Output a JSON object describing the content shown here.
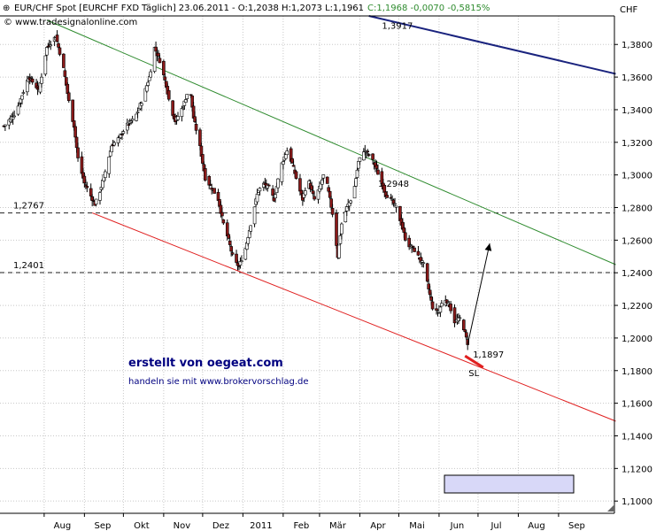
{
  "header": {
    "instrument": "EUR/CHF Spot [EURCHF FXD",
    "interval": "Täglich]",
    "date": "23.06.2011",
    "ohlc": "- O:1,2038 H:1,2073 L:1,1961",
    "change": "C:1,1968 -0,0070 -0,5815%",
    "copyright": "© www.tradesignalonline.com",
    "currency": "CHF"
  },
  "branding": {
    "title": "erstellt von oegeat.com",
    "subtitle": "handeln sie mit www.brokervorschlag.de"
  },
  "colors": {
    "candle_up": "#ffffff",
    "candle_down": "#8b1a1a",
    "upper_channel": "#2e8b2e",
    "lower_channel": "#e02020",
    "long_trend": "#1a237e",
    "grid": "#c8c8c8",
    "hline": "#222222",
    "legend_box": "#d8d8f8"
  },
  "chart_data": {
    "type": "candlestick",
    "title": "EUR/CHF Spot",
    "ylabel": "CHF",
    "ylim": [
      1.0925,
      1.3975
    ],
    "y_ticks": [
      "1,3800",
      "1,3600",
      "1,3400",
      "1,3200",
      "1,3000",
      "1,2800",
      "1,2600",
      "1,2400",
      "1,2200",
      "1,2000",
      "1,1800",
      "1,1600",
      "1,1400",
      "1,1200",
      "1,1000"
    ],
    "x_labels": [
      "Aug",
      "Sep",
      "Okt",
      "Nov",
      "Dez",
      "2011",
      "Feb",
      "Mär",
      "Apr",
      "Mai",
      "Jun",
      "Jul",
      "Aug",
      "Sep"
    ],
    "close_path": [
      [
        "2010-07-01",
        1.33
      ],
      [
        "2010-07-10",
        1.338
      ],
      [
        "2010-07-20",
        1.36
      ],
      [
        "2010-07-28",
        1.352
      ],
      [
        "2010-08-03",
        1.378
      ],
      [
        "2010-08-10",
        1.385
      ],
      [
        "2010-08-16",
        1.365
      ],
      [
        "2010-08-20",
        1.345
      ],
      [
        "2010-08-24",
        1.33
      ],
      [
        "2010-08-27",
        1.31
      ],
      [
        "2010-09-01",
        1.295
      ],
      [
        "2010-09-06",
        1.287
      ],
      [
        "2010-09-09",
        1.282
      ],
      [
        "2010-09-13",
        1.29
      ],
      [
        "2010-09-18",
        1.305
      ],
      [
        "2010-09-22",
        1.318
      ],
      [
        "2010-09-28",
        1.323
      ],
      [
        "2010-10-03",
        1.33
      ],
      [
        "2010-10-10",
        1.335
      ],
      [
        "2010-10-16",
        1.347
      ],
      [
        "2010-10-21",
        1.36
      ],
      [
        "2010-10-25",
        1.378
      ],
      [
        "2010-10-29",
        1.37
      ],
      [
        "2010-11-03",
        1.355
      ],
      [
        "2010-11-06",
        1.342
      ],
      [
        "2010-11-10",
        1.333
      ],
      [
        "2010-11-16",
        1.342
      ],
      [
        "2010-11-21",
        1.355
      ],
      [
        "2010-11-24",
        1.335
      ],
      [
        "2010-11-29",
        1.317
      ],
      [
        "2010-12-03",
        1.298
      ],
      [
        "2010-12-08",
        1.292
      ],
      [
        "2010-12-13",
        1.285
      ],
      [
        "2010-12-17",
        1.27
      ],
      [
        "2010-12-21",
        1.26
      ],
      [
        "2010-12-25",
        1.247
      ],
      [
        "2010-12-29",
        1.244
      ],
      [
        "2011-01-03",
        1.255
      ],
      [
        "2011-01-07",
        1.27
      ],
      [
        "2011-01-12",
        1.288
      ],
      [
        "2011-01-16",
        1.295
      ],
      [
        "2011-01-21",
        1.292
      ],
      [
        "2011-01-25",
        1.285
      ],
      [
        "2011-01-30",
        1.305
      ],
      [
        "2011-02-04",
        1.315
      ],
      [
        "2011-02-08",
        1.307
      ],
      [
        "2011-02-12",
        1.295
      ],
      [
        "2011-02-16",
        1.285
      ],
      [
        "2011-02-20",
        1.298
      ],
      [
        "2011-02-25",
        1.285
      ],
      [
        "2011-03-01",
        1.292
      ],
      [
        "2011-03-05",
        1.302
      ],
      [
        "2011-03-09",
        1.285
      ],
      [
        "2011-03-12",
        1.272
      ],
      [
        "2011-03-15",
        1.25
      ],
      [
        "2011-03-18",
        1.27
      ],
      [
        "2011-03-22",
        1.28
      ],
      [
        "2011-03-27",
        1.288
      ],
      [
        "2011-03-31",
        1.308
      ],
      [
        "2011-04-04",
        1.315
      ],
      [
        "2011-04-09",
        1.312
      ],
      [
        "2011-04-13",
        1.305
      ],
      [
        "2011-04-17",
        1.297
      ],
      [
        "2011-04-21",
        1.288
      ],
      [
        "2011-04-25",
        1.285
      ],
      [
        "2011-04-29",
        1.28
      ],
      [
        "2011-05-03",
        1.27
      ],
      [
        "2011-05-07",
        1.258
      ],
      [
        "2011-05-12",
        1.255
      ],
      [
        "2011-05-16",
        1.25
      ],
      [
        "2011-05-20",
        1.245
      ],
      [
        "2011-05-24",
        1.23
      ],
      [
        "2011-05-28",
        1.215
      ],
      [
        "2011-06-01",
        1.217
      ],
      [
        "2011-06-05",
        1.225
      ],
      [
        "2011-06-09",
        1.22
      ],
      [
        "2011-06-13",
        1.21
      ],
      [
        "2011-06-17",
        1.212
      ],
      [
        "2011-06-20",
        1.206
      ],
      [
        "2011-06-23",
        1.1968
      ]
    ],
    "lines": [
      {
        "kind": "upper-channel",
        "from": [
          "2010-08-03",
          1.395
        ],
        "to": [
          "2011-10-15",
          1.245
        ],
        "label": "1,2948"
      },
      {
        "kind": "lower-channel",
        "from": [
          "2010-09-07",
          1.2767
        ],
        "to": [
          "2011-10-15",
          1.149
        ],
        "label": "1,1897"
      },
      {
        "kind": "long-trend",
        "from": [
          "2011-04-08",
          1.3975
        ],
        "to": [
          "2011-10-15",
          1.362
        ],
        "label": "1,3917"
      }
    ],
    "hlines": [
      {
        "value": 1.2767,
        "label": "1,2767"
      },
      {
        "value": 1.2401,
        "label": "1,2401"
      }
    ],
    "annotations": {
      "stop_loss": {
        "label": "SL",
        "from": [
          "2011-06-21",
          1.189
        ],
        "to": [
          "2011-07-05",
          1.182
        ]
      },
      "target_arrow": {
        "from": [
          "2011-06-23",
          1.196
        ],
        "to": [
          "2011-07-10",
          1.258
        ]
      }
    }
  }
}
